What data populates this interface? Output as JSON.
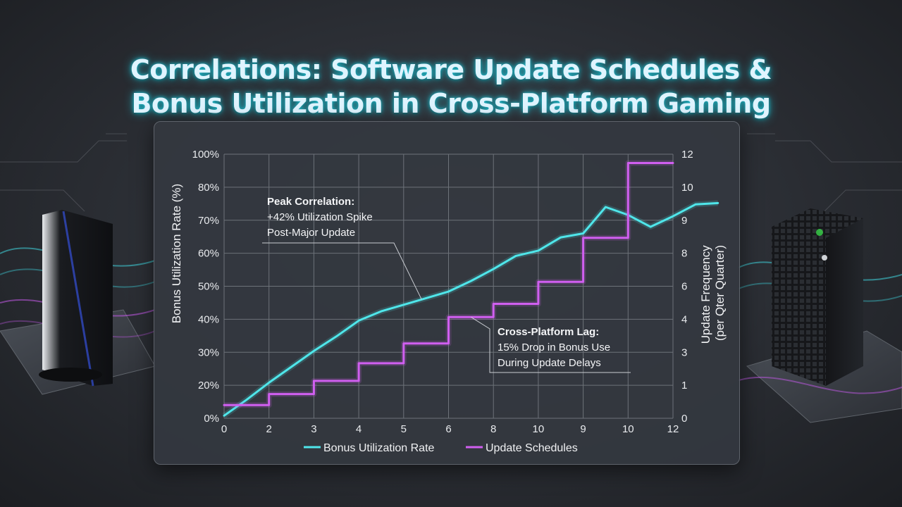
{
  "title_lines": [
    "Correlations: Software Update Schedules &",
    "Bonus Utilization in Cross-Platform Gaming"
  ],
  "colors": {
    "bonus": "#4fe6ea",
    "update": "#d05ff0",
    "grid": "#6d7279",
    "glow": "#21c7d9"
  },
  "chart_data": {
    "type": "line",
    "x_ticks": [
      "0",
      "2",
      "3",
      "4",
      "5",
      "6",
      "8",
      "10",
      "9",
      "10",
      "12"
    ],
    "ylabel_left": "Bonus Utilization Rate (%)",
    "ylabel_right": "Update Frequency (per Qter Quarter)",
    "y_left_ticks": [
      "0%",
      "20%",
      "30%",
      "40%",
      "50%",
      "60%",
      "70%",
      "80%",
      "100%"
    ],
    "y_right_ticks": [
      "0",
      "1",
      "3",
      "4",
      "6",
      "8",
      "9",
      "10",
      "12"
    ],
    "y_left_range": [
      0,
      100
    ],
    "y_right_range": [
      0,
      12
    ],
    "grid": true,
    "legend_position": "bottom-center",
    "series": [
      {
        "name": "Bonus Utilization Rate",
        "axis": "left",
        "x": [
          0,
          0.5,
          1,
          1.5,
          2,
          2.5,
          3,
          3.5,
          4,
          4.5,
          5,
          5.5,
          6,
          6.5,
          7,
          7.5,
          8,
          8.5,
          9,
          9.5,
          10,
          10.5,
          11
        ],
        "y": [
          1,
          7,
          13.5,
          19.5,
          25.5,
          31,
          37,
          40.5,
          43,
          45.5,
          48,
          52,
          56.5,
          61.5,
          63.5,
          68.5,
          70,
          80,
          77,
          72.5,
          76.5,
          81,
          81.5
        ]
      },
      {
        "name": "Update Schedules",
        "axis": "right",
        "x": [
          0,
          1,
          1,
          2,
          2,
          3,
          3,
          4,
          4,
          5,
          5,
          6,
          6,
          7,
          7,
          8,
          8,
          9,
          9,
          10
        ],
        "y": [
          0.6,
          0.6,
          1.1,
          1.1,
          1.7,
          1.7,
          2.5,
          2.5,
          3.4,
          3.4,
          4.6,
          4.6,
          5.2,
          5.2,
          6.2,
          6.2,
          8.2,
          8.2,
          11.6,
          11.6
        ]
      }
    ],
    "annotations": [
      {
        "lines": [
          "Peak Correlation:",
          "+42% Utilization Spike",
          "Post-Major Update"
        ],
        "points_to": {
          "series": "Bonus Utilization Rate",
          "x": 4.4
        }
      },
      {
        "lines": [
          "Cross-Platform Lag:",
          "15% Drop in Bonus Use",
          "During Update Delays"
        ],
        "points_to": {
          "series": "Update Schedules",
          "x": 5.5
        }
      }
    ]
  }
}
